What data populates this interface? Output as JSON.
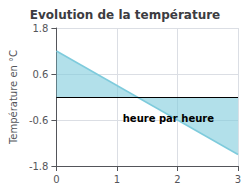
{
  "chart_data": {
    "type": "area",
    "title": "Evolution de la température",
    "ylabel": "Température en °C",
    "x": [
      0,
      3
    ],
    "values": [
      1.2,
      -1.5
    ],
    "color": "#7ecbdc",
    "xlim": [
      0,
      3
    ],
    "xticks": [
      0,
      1,
      2,
      3
    ],
    "ylim": [
      -1.8,
      1.8
    ],
    "yticks": [
      -1.8,
      -0.6,
      0.6,
      1.8
    ],
    "grid": true,
    "annotations": [
      {
        "text": "heure par heure",
        "x": 1.85,
        "y": -0.55
      }
    ]
  }
}
